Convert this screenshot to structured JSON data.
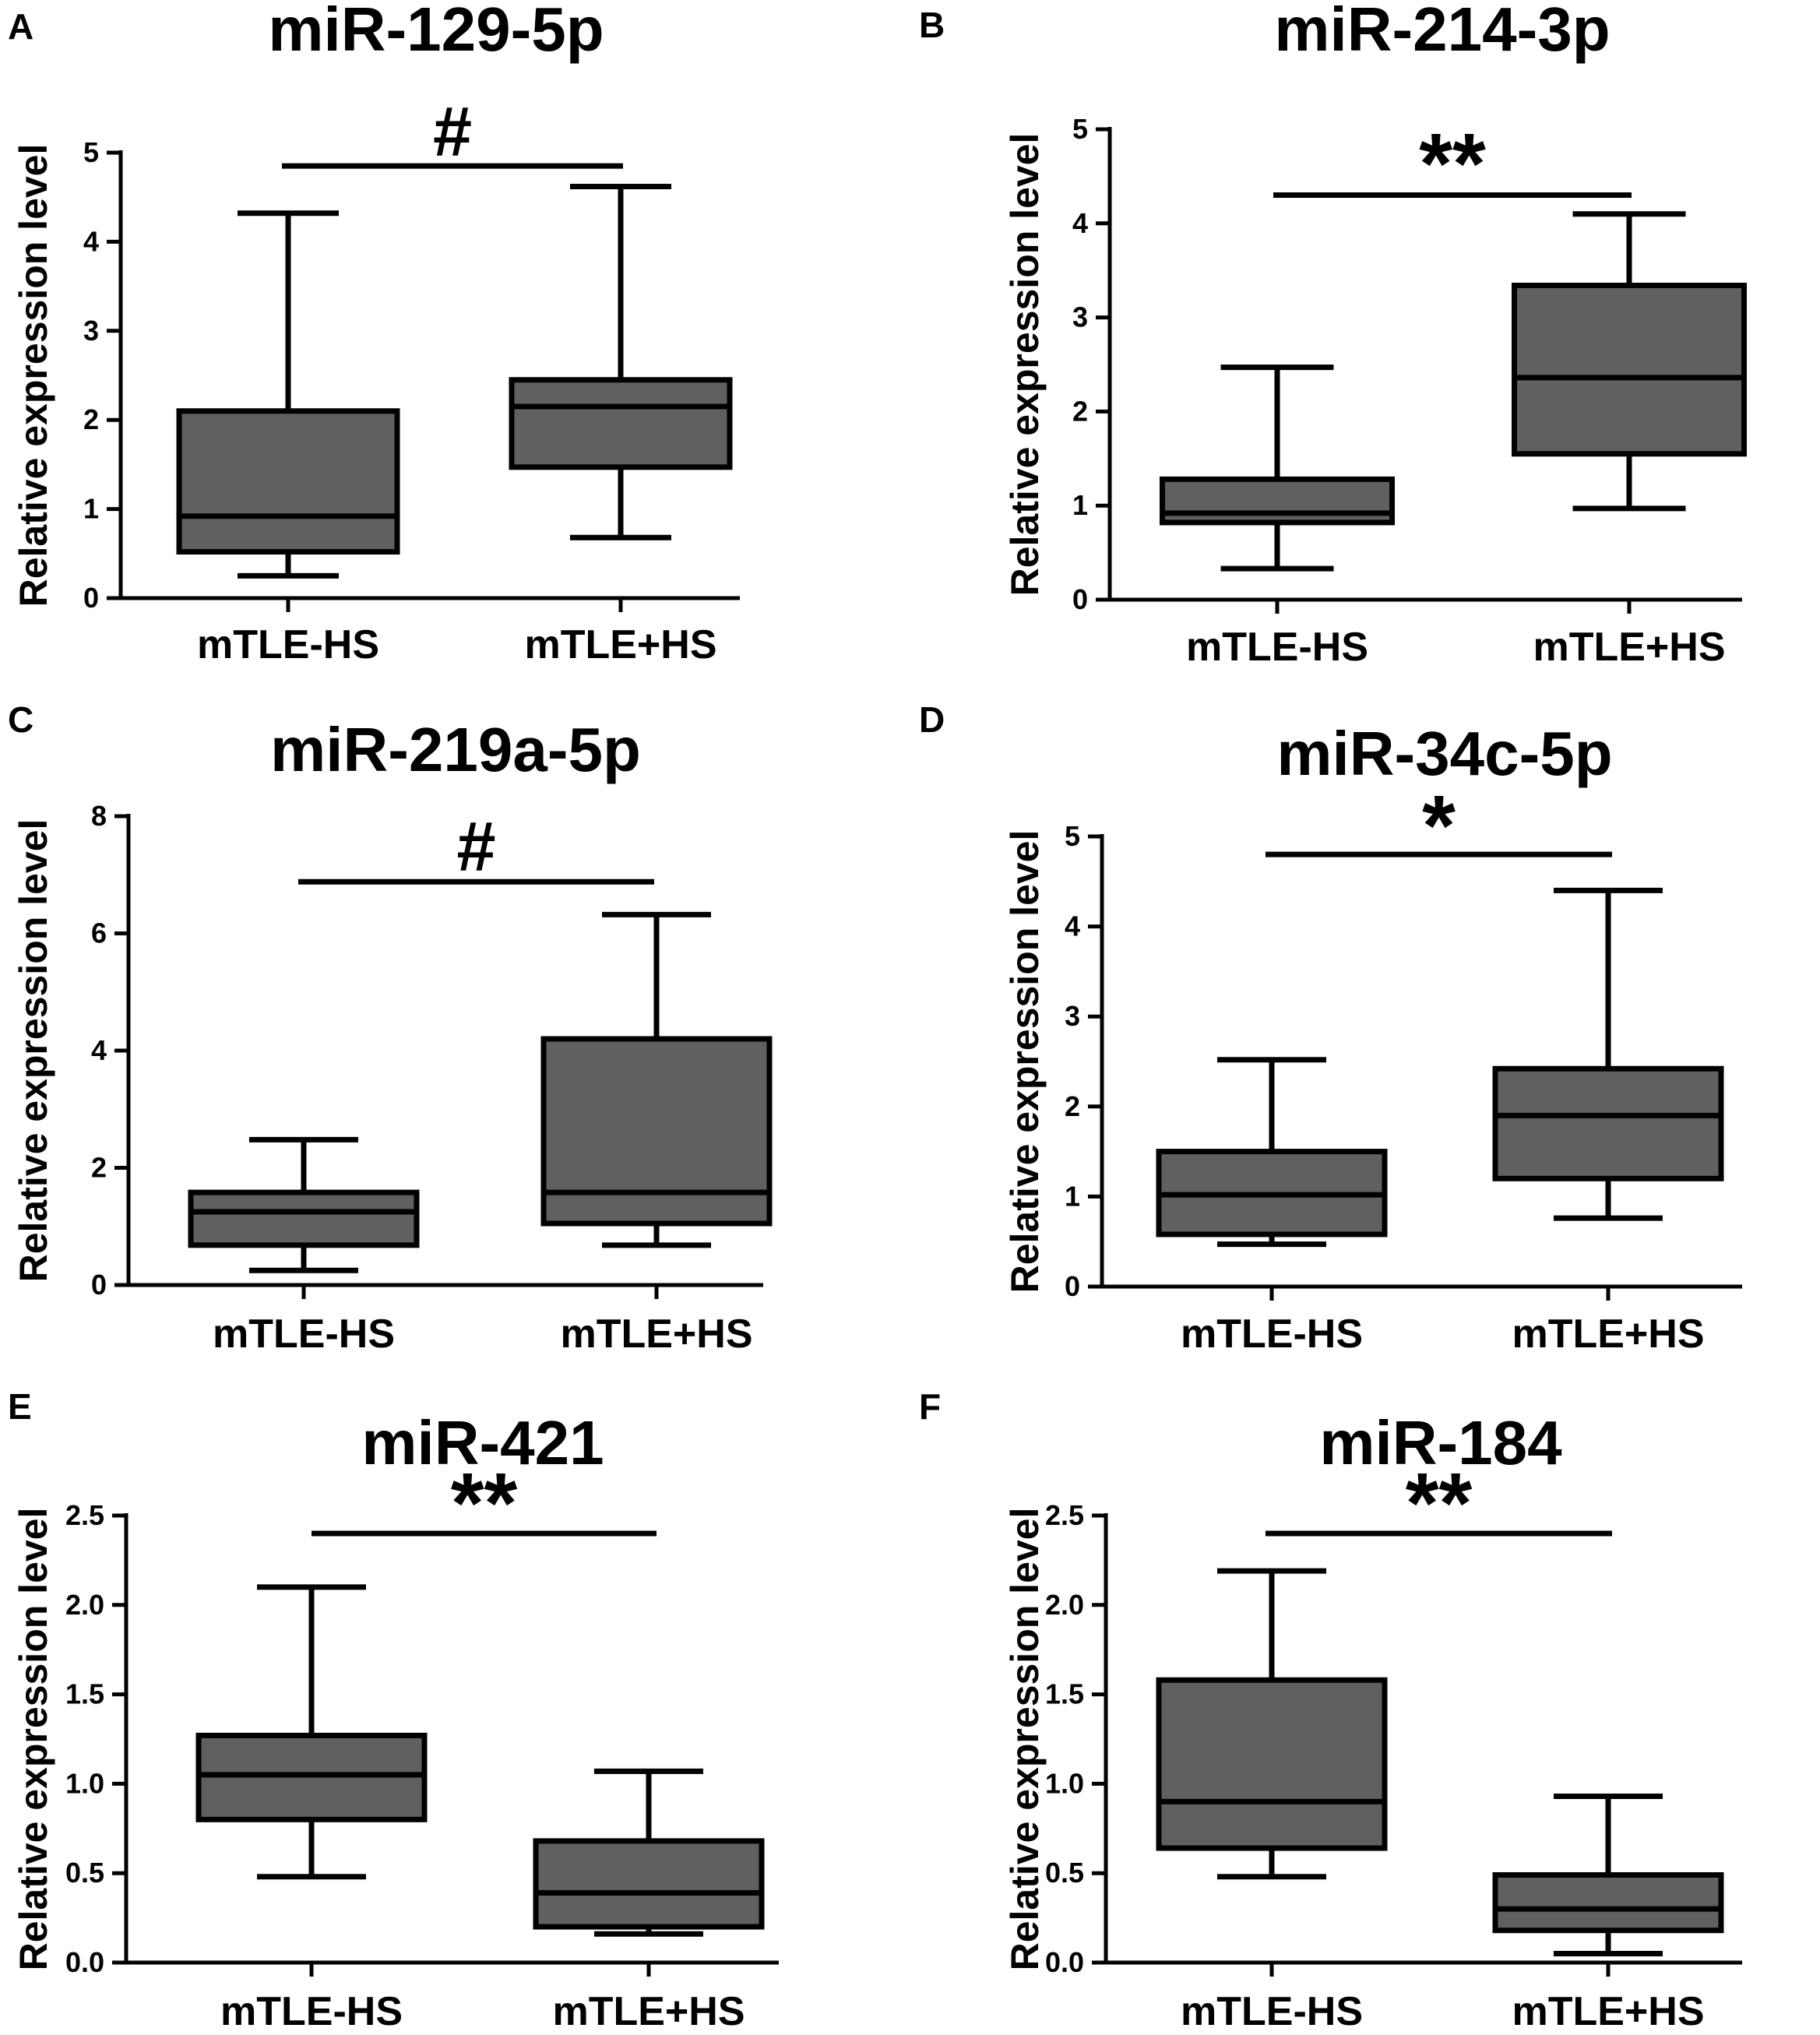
{
  "chart_data": [
    {
      "type": "box",
      "panel": "A",
      "title": "miR-129-5p",
      "ylabel": "Relative expression level",
      "xlabel": "",
      "ylim": [
        0,
        5
      ],
      "yticks": [
        "0",
        "1",
        "2",
        "3",
        "4",
        "5"
      ],
      "categories": [
        "mTLE-HS",
        "mTLE+HS"
      ],
      "boxes": [
        {
          "min": 0.25,
          "q1": 0.52,
          "median": 0.92,
          "q3": 2.1,
          "max": 4.32
        },
        {
          "min": 0.68,
          "q1": 1.47,
          "median": 2.15,
          "q3": 2.45,
          "max": 4.62
        }
      ],
      "significance": {
        "label": "#",
        "y": 4.85
      }
    },
    {
      "type": "box",
      "panel": "B",
      "title": "miR-214-3p",
      "ylabel": "Relative expression level",
      "xlabel": "",
      "ylim": [
        0,
        5
      ],
      "yticks": [
        "0",
        "1",
        "2",
        "3",
        "4",
        "5"
      ],
      "categories": [
        "mTLE-HS",
        "mTLE+HS"
      ],
      "boxes": [
        {
          "min": 0.33,
          "q1": 0.82,
          "median": 0.92,
          "q3": 1.28,
          "max": 2.47
        },
        {
          "min": 0.97,
          "q1": 1.55,
          "median": 2.36,
          "q3": 3.34,
          "max": 4.1
        }
      ],
      "significance": {
        "label": "**",
        "y": 4.3
      }
    },
    {
      "type": "box",
      "panel": "C",
      "title": "miR-219a-5p",
      "ylabel": "Relative expression level",
      "xlabel": "",
      "ylim": [
        0,
        8
      ],
      "yticks": [
        "0",
        "2",
        "4",
        "6",
        "8"
      ],
      "categories": [
        "mTLE-HS",
        "mTLE+HS"
      ],
      "boxes": [
        {
          "min": 0.25,
          "q1": 0.68,
          "median": 1.25,
          "q3": 1.58,
          "max": 2.48
        },
        {
          "min": 0.68,
          "q1": 1.05,
          "median": 1.58,
          "q3": 4.2,
          "max": 6.32
        }
      ],
      "significance": {
        "label": "#",
        "y": 6.88
      }
    },
    {
      "type": "box",
      "panel": "D",
      "title": "miR-34c-5p",
      "ylabel": "Relative expression level",
      "xlabel": "",
      "ylim": [
        0,
        5
      ],
      "yticks": [
        "0",
        "1",
        "2",
        "3",
        "4",
        "5"
      ],
      "categories": [
        "mTLE-HS",
        "mTLE+HS"
      ],
      "boxes": [
        {
          "min": 0.47,
          "q1": 0.58,
          "median": 1.02,
          "q3": 1.5,
          "max": 2.52
        },
        {
          "min": 0.76,
          "q1": 1.2,
          "median": 1.9,
          "q3": 2.42,
          "max": 4.4
        }
      ],
      "significance": {
        "label": "*",
        "y": 4.8
      }
    },
    {
      "type": "box",
      "panel": "E",
      "title": "miR-421",
      "ylabel": "Relative expression level",
      "xlabel": "",
      "ylim": [
        0,
        2.5
      ],
      "yticks": [
        "0.0",
        "0.5",
        "1.0",
        "1.5",
        "2.0",
        "2.5"
      ],
      "categories": [
        "mTLE-HS",
        "mTLE+HS"
      ],
      "boxes": [
        {
          "min": 0.48,
          "q1": 0.8,
          "median": 1.05,
          "q3": 1.27,
          "max": 2.1
        },
        {
          "min": 0.16,
          "q1": 0.2,
          "median": 0.39,
          "q3": 0.68,
          "max": 1.07
        }
      ],
      "significance": {
        "label": "**",
        "y": 2.4
      }
    },
    {
      "type": "box",
      "panel": "F",
      "title": "miR-184",
      "ylabel": "Relative expression level",
      "xlabel": "",
      "ylim": [
        0,
        2.5
      ],
      "yticks": [
        "0.0",
        "0.5",
        "1.0",
        "1.5",
        "2.0",
        "2.5"
      ],
      "categories": [
        "mTLE-HS",
        "mTLE+HS"
      ],
      "boxes": [
        {
          "min": 0.48,
          "q1": 0.64,
          "median": 0.9,
          "q3": 1.58,
          "max": 2.19
        },
        {
          "min": 0.05,
          "q1": 0.18,
          "median": 0.3,
          "q3": 0.49,
          "max": 0.93
        }
      ],
      "significance": {
        "label": "**",
        "y": 2.4
      }
    }
  ]
}
